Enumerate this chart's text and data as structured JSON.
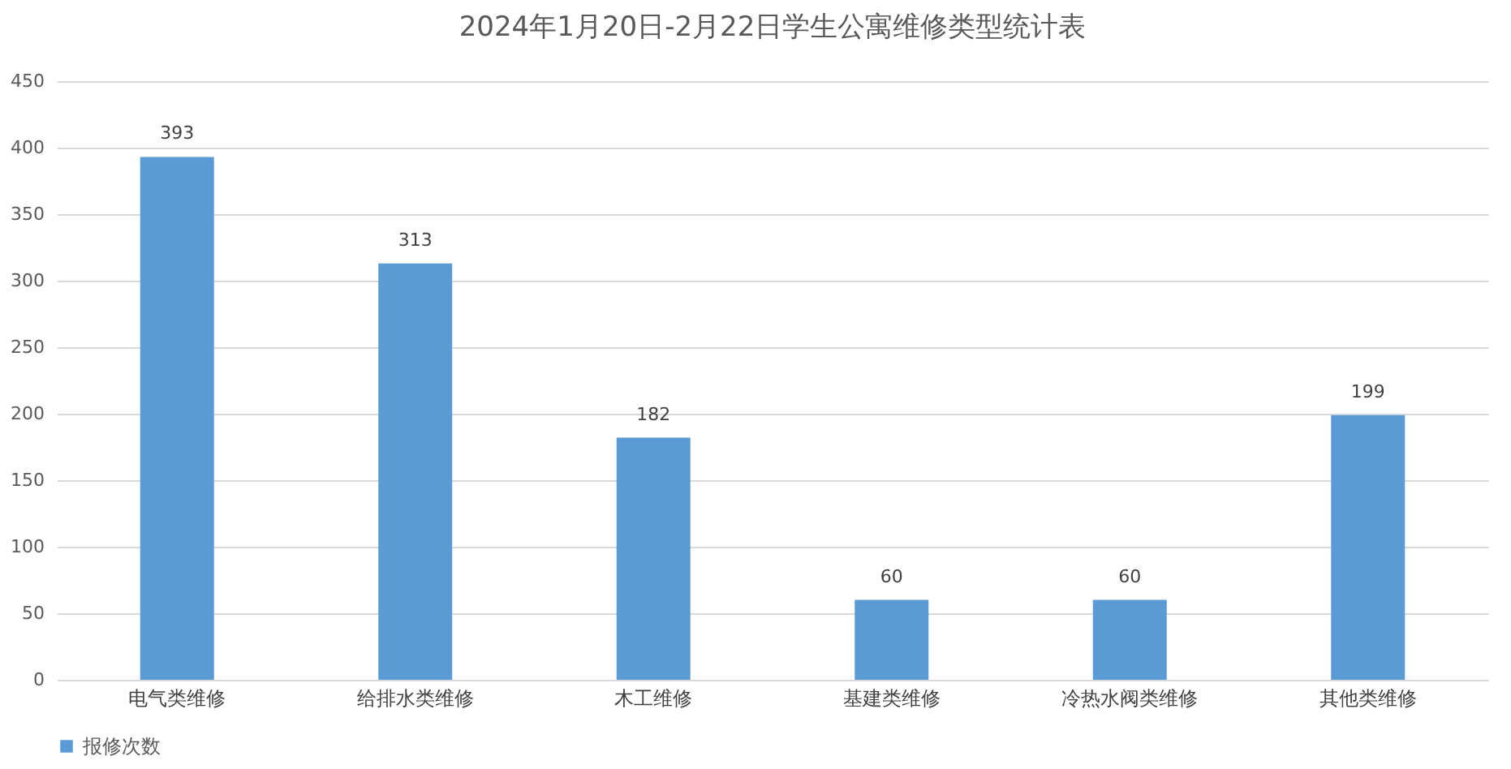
{
  "chart_data": {
    "type": "bar",
    "title": "2024年1月20日-2月22日学生公寓维修类型统计表",
    "categories": [
      "电气类维修",
      "给排水类维修",
      "木工维修",
      "基建类维修",
      "冷热水阀类维修",
      "其他类维修"
    ],
    "series": [
      {
        "name": "报修次数",
        "color": "#5b9bd5",
        "values": [
          393,
          313,
          182,
          60,
          60,
          199
        ]
      }
    ],
    "ylim": [
      0,
      450
    ],
    "yticks": [
      0,
      50,
      100,
      150,
      200,
      250,
      300,
      350,
      400,
      450
    ],
    "grid": "y",
    "legend": "bottom",
    "data_labels": true
  }
}
